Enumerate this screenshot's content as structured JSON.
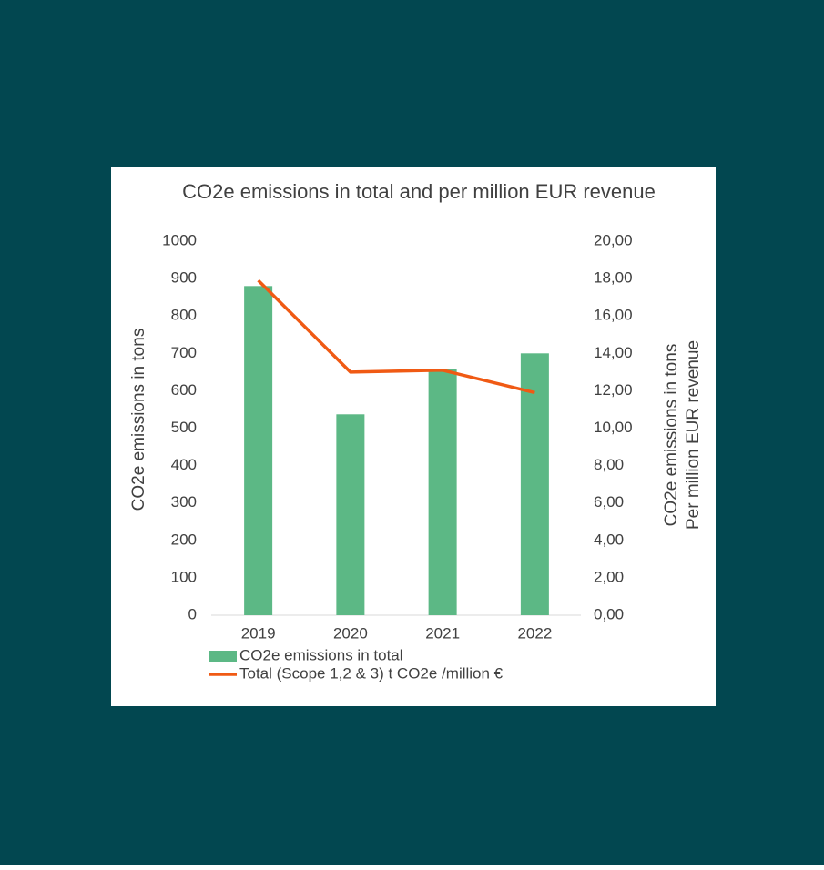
{
  "chart_data": {
    "type": "combo",
    "title": "CO2e emissions in total and per million EUR revenue",
    "ylabel": "CO2e emissions in tons",
    "y2label": [
      "CO2e emissions in tons",
      "Per million EUR revenue"
    ],
    "categories": [
      "2019",
      "2020",
      "2021",
      "2022"
    ],
    "series": [
      {
        "name": "CO2e emissions in total",
        "type": "bar",
        "color": "#5cb885",
        "values": [
          880,
          537,
          657,
          700
        ]
      },
      {
        "name": "Total (Scope 1,2 & 3) t CO2e /million €",
        "type": "line",
        "axis": "y2",
        "color": "#f05a14",
        "values": [
          17.9,
          13.0,
          13.1,
          11.9
        ]
      }
    ],
    "ylim": [
      0,
      1000
    ],
    "yticks": [
      0,
      100,
      200,
      300,
      400,
      500,
      600,
      700,
      800,
      900,
      1000
    ],
    "y2lim": [
      0,
      20
    ],
    "y2ticks": [
      {
        "value": 0,
        "label": "0,00"
      },
      {
        "value": 2,
        "label": "2,00"
      },
      {
        "value": 4,
        "label": "4,00"
      },
      {
        "value": 6,
        "label": "6,00"
      },
      {
        "value": 8,
        "label": "8,00"
      },
      {
        "value": 10,
        "label": "10,00"
      },
      {
        "value": 12,
        "label": "12,00"
      },
      {
        "value": 14,
        "label": "14,00"
      },
      {
        "value": 16,
        "label": "16,00"
      },
      {
        "value": 18,
        "label": "18,00"
      },
      {
        "value": 20,
        "label": "20,00"
      }
    ],
    "grid": false,
    "legend": "bottom"
  }
}
